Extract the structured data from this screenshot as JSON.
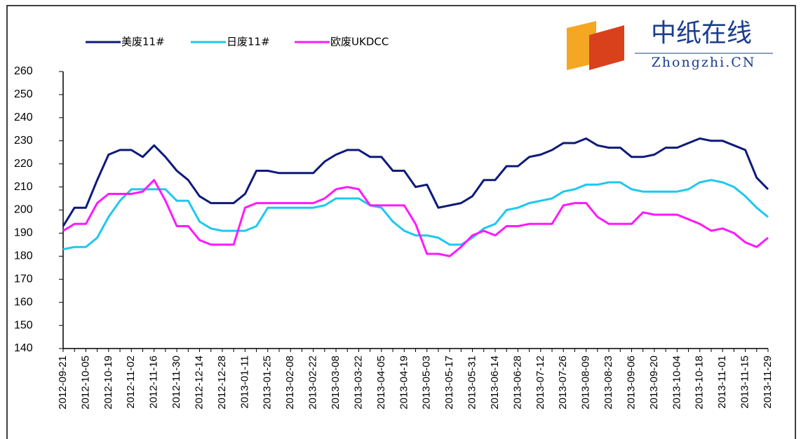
{
  "chart_data": {
    "type": "line",
    "categories": [
      "2012-09-21",
      null,
      "2012-10-05",
      null,
      "2012-10-19",
      null,
      "2012-11-02",
      null,
      "2012-11-16",
      null,
      "2012-11-30",
      null,
      "2012-12-14",
      null,
      "2012-12-28",
      null,
      "2013-01-11",
      null,
      "2013-01-25",
      null,
      "2013-02-08",
      null,
      "2013-02-22",
      null,
      "2013-03-08",
      null,
      "2013-03-22",
      null,
      "2013-04-05",
      null,
      "2013-04-19",
      null,
      "2013-05-03",
      null,
      "2013-05-17",
      null,
      "2013-05-31",
      null,
      "2013-06-14",
      null,
      "2013-06-28",
      null,
      "2013-07-12",
      null,
      "2013-07-26",
      null,
      "2013-08-09",
      null,
      "2013-08-23",
      null,
      "2013-09-06",
      null,
      "2013-09-20",
      null,
      "2013-10-04",
      null,
      "2013-10-18",
      null,
      "2013-11-01",
      null,
      "2013-11-15",
      null,
      "2013-11-29"
    ],
    "series": [
      {
        "name": "美废11#",
        "color": "#0d1a7a",
        "values": [
          193,
          201,
          201,
          213,
          224,
          226,
          226,
          223,
          228,
          223,
          217,
          213,
          206,
          203,
          203,
          203,
          207,
          217,
          217,
          216,
          216,
          216,
          216,
          221,
          224,
          226,
          226,
          223,
          223,
          217,
          217,
          210,
          211,
          201,
          202,
          203,
          206,
          213,
          213,
          219,
          219,
          223,
          224,
          226,
          229,
          229,
          231,
          228,
          227,
          227,
          223,
          223,
          224,
          227,
          227,
          229,
          231,
          230,
          230,
          228,
          226,
          214,
          209
        ]
      },
      {
        "name": "日废11#",
        "color": "#1ec8f0",
        "values": [
          183,
          184,
          184,
          188,
          197,
          204,
          209,
          209,
          209,
          209,
          204,
          204,
          195,
          192,
          191,
          191,
          191,
          193,
          201,
          201,
          201,
          201,
          201,
          202,
          205,
          205,
          205,
          202,
          201,
          195,
          191,
          189,
          189,
          188,
          185,
          185,
          188,
          192,
          194,
          200,
          201,
          203,
          204,
          205,
          208,
          209,
          211,
          211,
          212,
          212,
          209,
          208,
          208,
          208,
          208,
          209,
          212,
          213,
          212,
          210,
          206,
          201,
          197
        ]
      },
      {
        "name": "欧废UKDCC",
        "color": "#ff19ff",
        "values": [
          191,
          194,
          194,
          203,
          207,
          207,
          207,
          208,
          213,
          204,
          193,
          193,
          187,
          185,
          185,
          185,
          201,
          203,
          203,
          203,
          203,
          203,
          203,
          205,
          209,
          210,
          209,
          202,
          202,
          202,
          202,
          194,
          181,
          181,
          180,
          184,
          189,
          191,
          189,
          193,
          193,
          194,
          194,
          194,
          202,
          203,
          203,
          197,
          194,
          194,
          194,
          199,
          198,
          198,
          198,
          196,
          194,
          191,
          192,
          190,
          186,
          184,
          188
        ]
      }
    ],
    "ylim": [
      140,
      260
    ],
    "yticks": [
      140,
      150,
      160,
      170,
      180,
      190,
      200,
      210,
      220,
      230,
      240,
      250,
      260
    ],
    "logo": {
      "title": "中纸在线",
      "subtitle": "Zhongzhi.CN"
    }
  }
}
